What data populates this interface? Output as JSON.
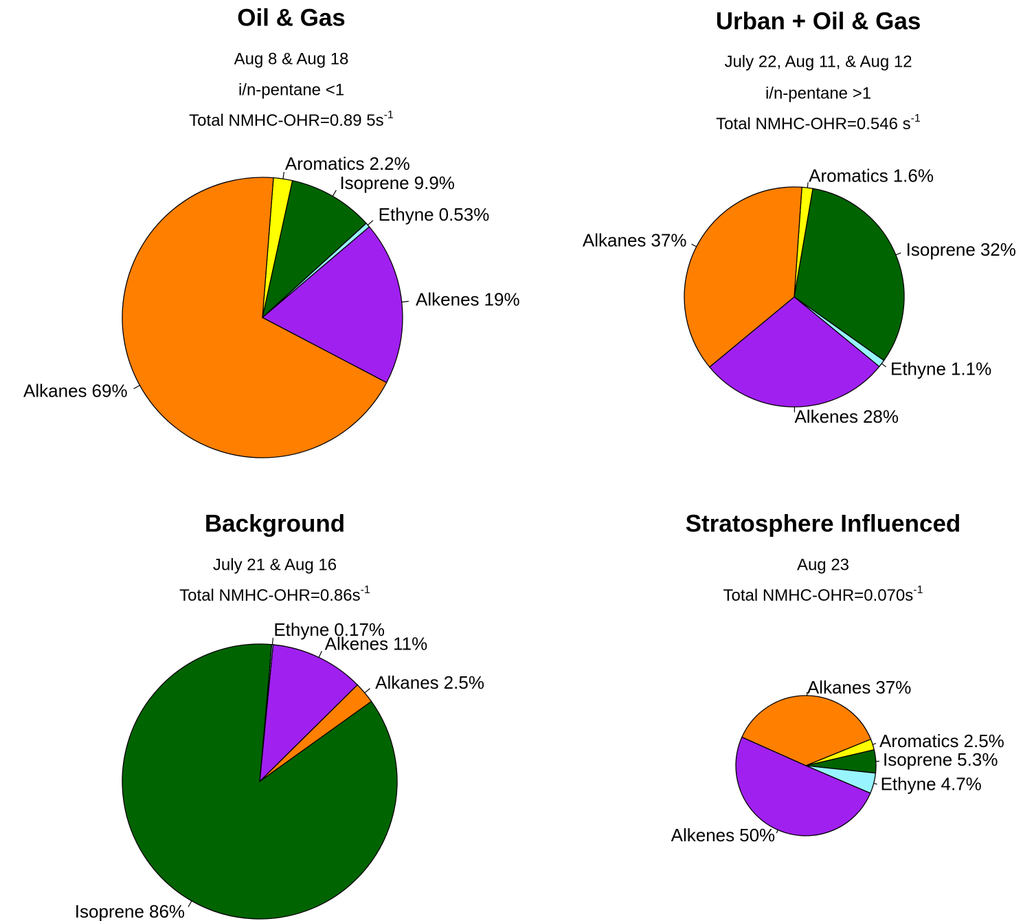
{
  "chart_data": [
    {
      "type": "pie",
      "title": "Oil & Gas",
      "subtitle": [
        "Aug 8 & Aug 18",
        "i/n-pentane <1"
      ],
      "ohr": {
        "text": "Total NMHC-OHR=0.89 5s",
        "sup": "-1"
      },
      "categories": [
        "Aromatics",
        "Isoprene",
        "Ethyne",
        "Alkenes",
        "Alkanes"
      ],
      "values": [
        2.2,
        9.9,
        0.53,
        19,
        69
      ],
      "value_labels": [
        "2.2%",
        "9.9%",
        "0.53%",
        "19%",
        "69%"
      ],
      "colors": [
        "#ffff00",
        "#006400",
        "#98f5ff",
        "#a020f0",
        "#ff7f00"
      ]
    },
    {
      "type": "pie",
      "title": "Urban + Oil & Gas",
      "subtitle": [
        "July 22, Aug 11, & Aug 12",
        "i/n-pentane >1"
      ],
      "ohr": {
        "text": "Total NMHC-OHR=0.546 s",
        "sup": "-1"
      },
      "categories": [
        "Aromatics",
        "Isoprene",
        "Ethyne",
        "Alkenes",
        "Alkanes"
      ],
      "values": [
        1.6,
        32,
        1.1,
        28,
        37
      ],
      "value_labels": [
        "1.6%",
        "32%",
        "1.1%",
        "28%",
        "37%"
      ],
      "colors": [
        "#ffff00",
        "#006400",
        "#98f5ff",
        "#a020f0",
        "#ff7f00"
      ]
    },
    {
      "type": "pie",
      "title": "Background",
      "subtitle": [
        "July 21 & Aug 16"
      ],
      "ohr": {
        "text": "Total NMHC-OHR=0.86s",
        "sup": "-1"
      },
      "categories": [
        "Ethyne",
        "Alkenes",
        "Alkanes",
        "Isoprene"
      ],
      "values": [
        0.17,
        11,
        2.5,
        86
      ],
      "value_labels": [
        "0.17%",
        "11%",
        "2.5%",
        "86%"
      ],
      "colors": [
        "#98f5ff",
        "#a020f0",
        "#ff7f00",
        "#006400"
      ]
    },
    {
      "type": "pie",
      "title": "Stratosphere Influenced",
      "subtitle": [
        "Aug 23"
      ],
      "ohr": {
        "text": "Total NMHC-OHR=0.070s",
        "sup": "-1"
      },
      "categories": [
        "Alkanes",
        "Aromatics",
        "Isoprene",
        "Ethyne",
        "Alkenes"
      ],
      "values": [
        37,
        2.5,
        5.3,
        4.7,
        50
      ],
      "value_labels": [
        "37%",
        "2.5%",
        "5.3%",
        "4.7%",
        "50%"
      ],
      "colors": [
        "#ff7f00",
        "#ffff00",
        "#006400",
        "#98f5ff",
        "#a020f0"
      ]
    }
  ]
}
